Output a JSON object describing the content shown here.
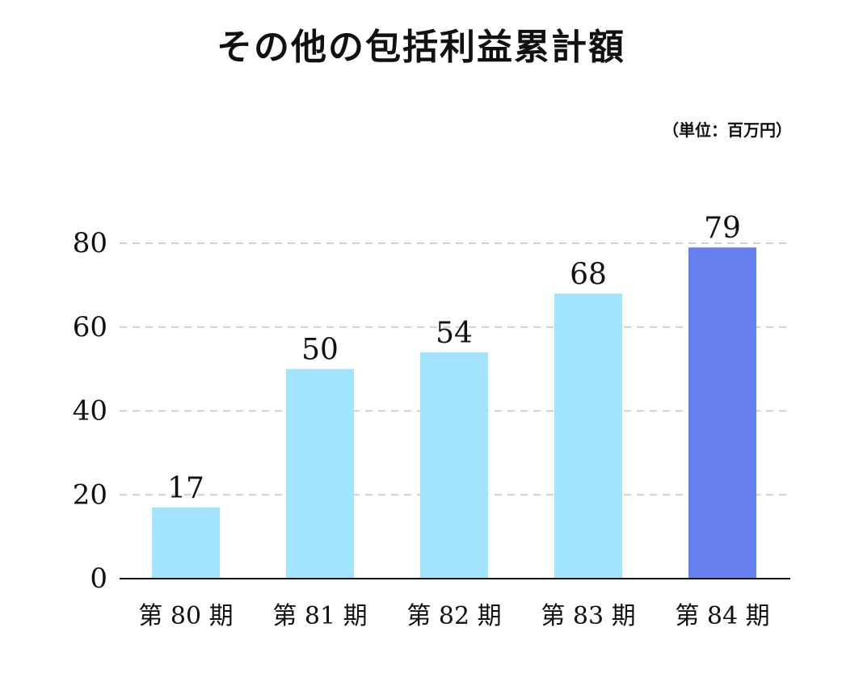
{
  "title": "その他の包括利益累計額",
  "unit": "（単位：百万円）",
  "chart_data": {
    "type": "bar",
    "title": "その他の包括利益累計額",
    "categories": [
      "第 80 期",
      "第 81 期",
      "第 82 期",
      "第 83 期",
      "第 84 期"
    ],
    "values": [
      17,
      50,
      54,
      68,
      79
    ],
    "value_labels": [
      "17",
      "50",
      "54",
      "68",
      "79"
    ],
    "ylim": [
      0,
      80
    ],
    "yticks": [
      0,
      20,
      40,
      60,
      80
    ],
    "ytick_labels": [
      "0",
      "20",
      "40",
      "60",
      "80"
    ],
    "xlabel": "",
    "ylabel": "",
    "grid": true,
    "colors": {
      "bar": "#a2e3fd",
      "highlight_bar": "#6680ef",
      "grid": "#cfcfcf",
      "axis": "#111111"
    },
    "highlight_index": 4
  }
}
